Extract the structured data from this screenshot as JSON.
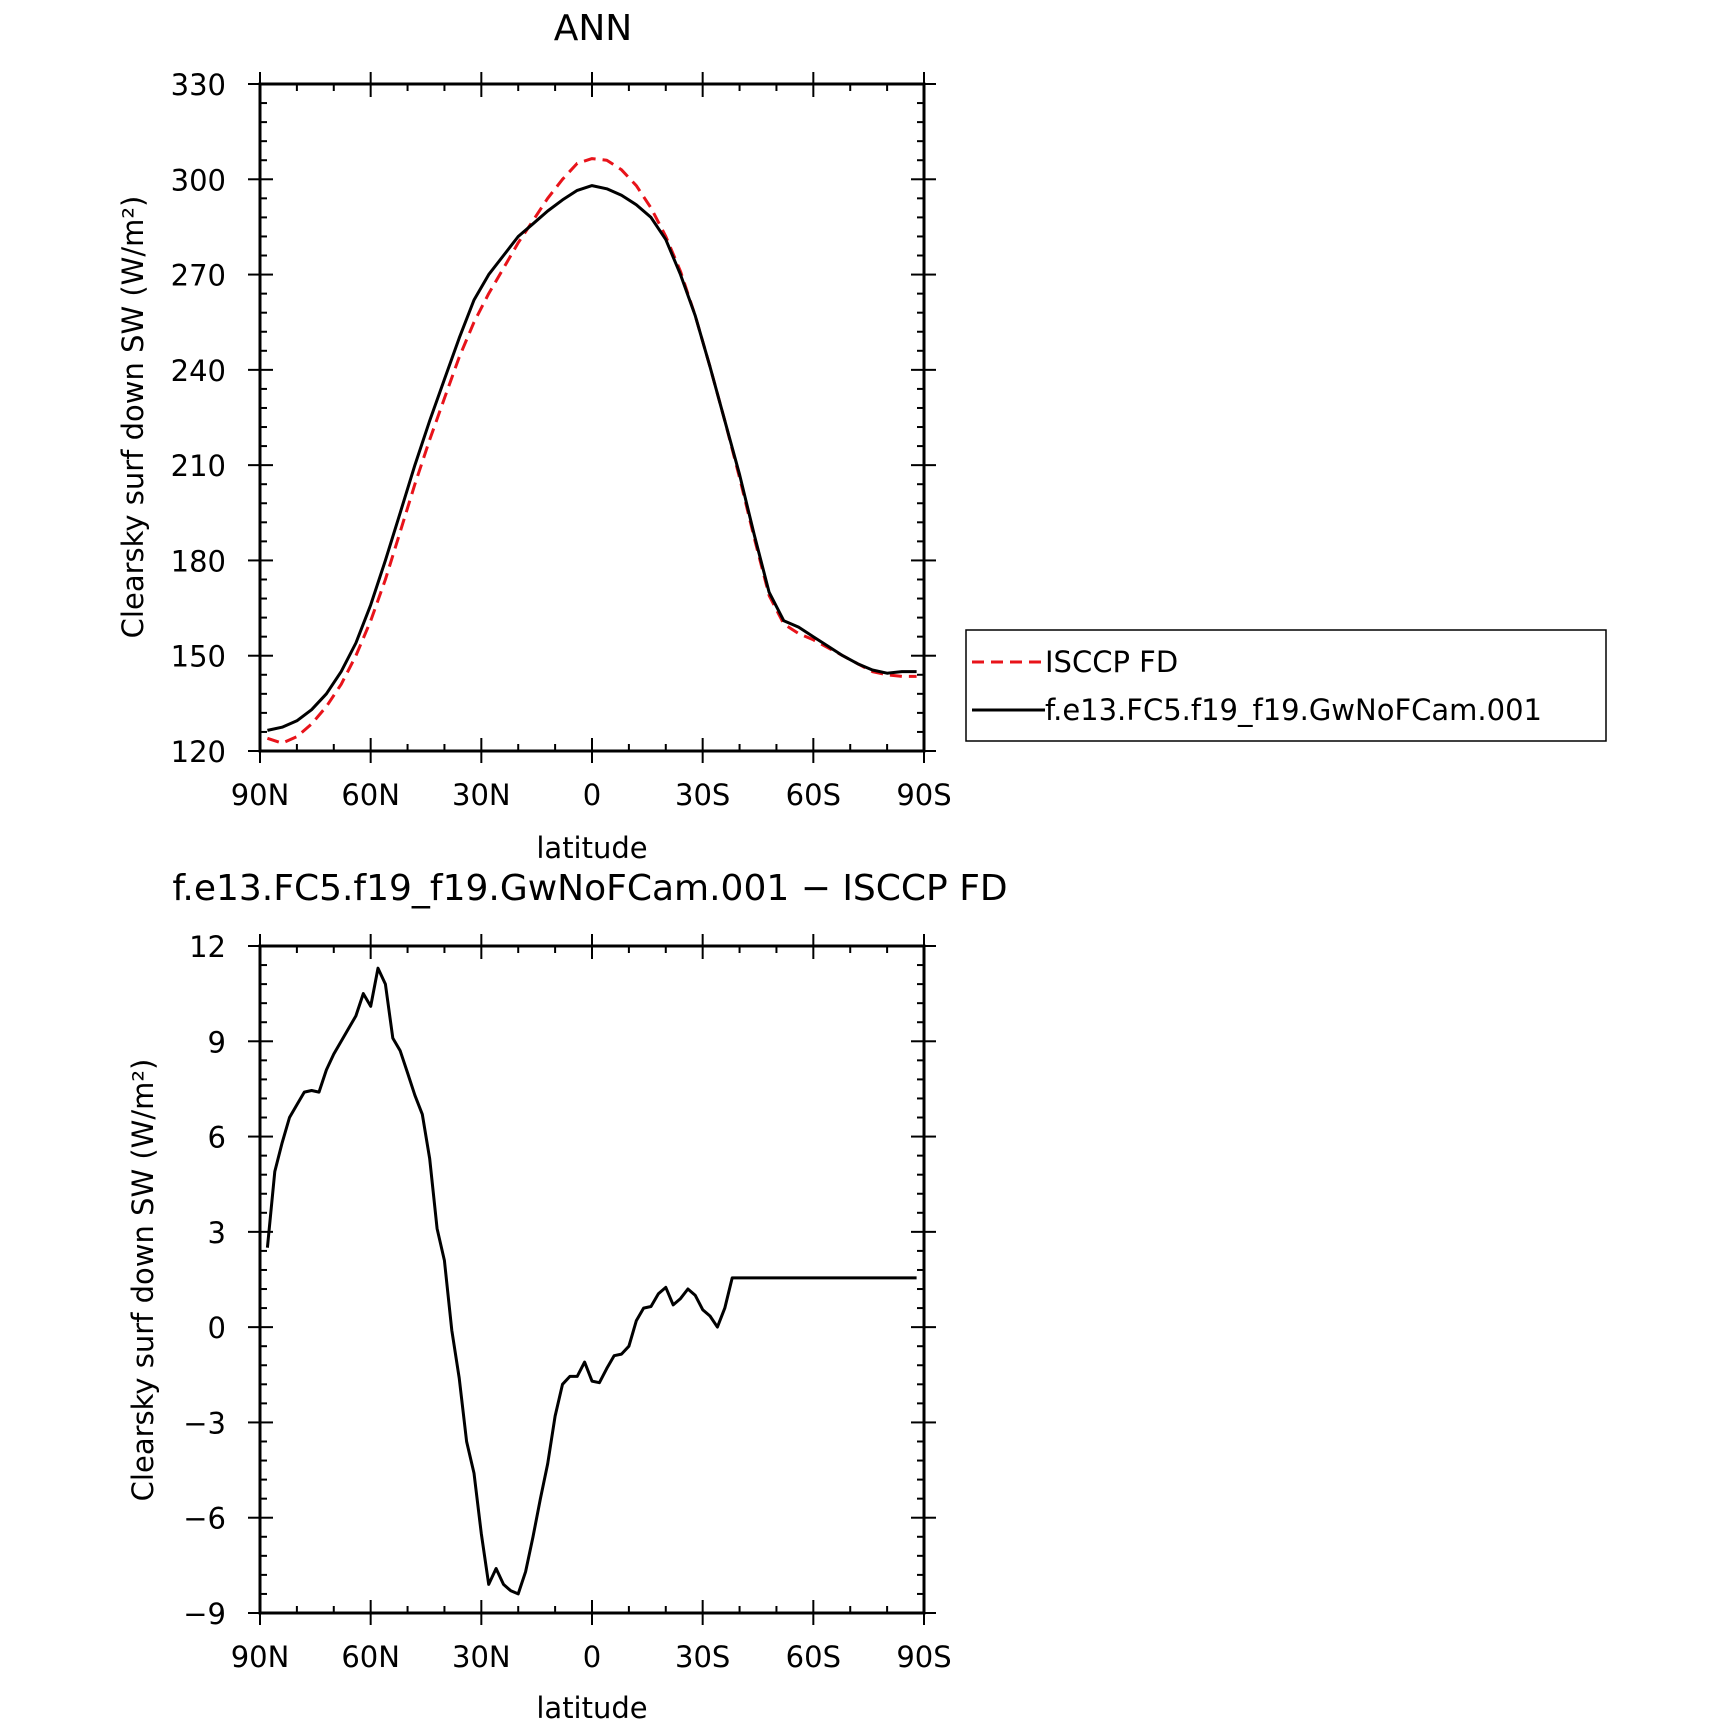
{
  "chart_data": [
    {
      "type": "line",
      "title": "ANN",
      "xlabel": "latitude",
      "ylabel": "Clearsky surf down SW (W/m²)",
      "ylim": [
        120,
        330
      ],
      "xlim": [
        90,
        -90
      ],
      "x_ticks": [
        90,
        60,
        30,
        0,
        -30,
        -60,
        -90
      ],
      "x_tick_labels": [
        "90N",
        "60N",
        "30N",
        "0",
        "30S",
        "60S",
        "90S"
      ],
      "y_ticks": [
        120,
        150,
        180,
        210,
        240,
        270,
        300,
        330
      ],
      "y_tick_labels": [
        "120",
        "150",
        "180",
        "210",
        "240",
        "270",
        "300",
        "330"
      ],
      "legend_position": "right",
      "series": [
        {
          "name": "ISCCP FD",
          "color": "#e8131a",
          "dash": "dashed",
          "x": [
            88,
            84,
            80,
            76,
            72,
            68,
            64,
            60,
            56,
            52,
            48,
            44,
            40,
            36,
            32,
            28,
            24,
            20,
            16,
            12,
            8,
            4,
            0,
            -4,
            -8,
            -12,
            -16,
            -20,
            -24,
            -28,
            -32,
            -36,
            -40,
            -44,
            -48,
            -52,
            -56,
            -60,
            -64,
            -68,
            -72,
            -76,
            -80,
            -84,
            -88
          ],
          "y": [
            124,
            122.5,
            124.5,
            128.5,
            134,
            141,
            150,
            161,
            174,
            189,
            204,
            218,
            231,
            244,
            255,
            264,
            272,
            280,
            287,
            294,
            300,
            305,
            306.5,
            306,
            303,
            298,
            291,
            282,
            271,
            257,
            241,
            224,
            206,
            187,
            169,
            160,
            157,
            155,
            152.5,
            150,
            147.5,
            145,
            144,
            143.5,
            143.5
          ]
        },
        {
          "name": "f.e13.FC5.f19_f19.GwNoFCam.001",
          "color": "#000000",
          "dash": "solid",
          "x": [
            88,
            84,
            80,
            76,
            72,
            68,
            64,
            60,
            56,
            52,
            48,
            44,
            40,
            36,
            32,
            28,
            24,
            20,
            16,
            12,
            8,
            4,
            0,
            -4,
            -8,
            -12,
            -16,
            -20,
            -24,
            -28,
            -32,
            -36,
            -40,
            -44,
            -48,
            -52,
            -56,
            -60,
            -64,
            -68,
            -72,
            -76,
            -80,
            -84,
            -88
          ],
          "y": [
            126.5,
            127.5,
            129.5,
            133,
            138,
            145,
            154,
            166,
            180,
            195,
            210,
            224,
            237,
            250,
            262,
            270,
            276,
            282,
            286,
            290,
            293.5,
            296.5,
            298,
            297,
            295,
            292,
            288,
            281,
            270,
            257,
            241,
            224,
            207,
            188,
            170,
            161,
            159,
            156,
            153,
            150,
            147.5,
            145.5,
            144.5,
            145,
            145
          ]
        }
      ]
    },
    {
      "type": "line",
      "title": "f.e13.FC5.f19_f19.GwNoFCam.001 − ISCCP FD",
      "xlabel": "latitude",
      "ylabel": "Clearsky surf down SW (W/m²)",
      "ylim": [
        -9,
        12
      ],
      "xlim": [
        90,
        -90
      ],
      "x_ticks": [
        90,
        60,
        30,
        0,
        -30,
        -60,
        -90
      ],
      "x_tick_labels": [
        "90N",
        "60N",
        "30N",
        "0",
        "30S",
        "60S",
        "90S"
      ],
      "y_ticks": [
        -9,
        -6,
        -3,
        0,
        3,
        6,
        9,
        12
      ],
      "y_tick_labels": [
        "−9",
        "−6",
        "−3",
        "0",
        "3",
        "6",
        "9",
        "12"
      ],
      "series": [
        {
          "color": "#000000",
          "dash": "solid",
          "x": [
            88,
            86,
            84,
            82,
            80,
            78,
            76,
            74,
            72,
            70,
            68,
            66,
            64,
            62,
            60,
            58,
            56,
            54,
            52,
            50,
            48,
            46,
            44,
            42,
            40,
            38,
            36,
            34,
            32,
            30,
            28,
            26,
            24,
            22,
            20,
            18,
            16,
            14,
            12,
            10,
            8,
            6,
            4,
            2,
            0,
            -2,
            -4,
            -6,
            -8,
            -10,
            -12,
            -14,
            -16,
            -18,
            -20,
            -22,
            -24,
            -26,
            -28,
            -30,
            -32,
            -34,
            -36,
            -38,
            -40,
            -42,
            -44,
            -46,
            -48,
            -50,
            -52,
            -54,
            -56,
            -58,
            -60,
            -62,
            -64,
            -66,
            -68,
            -70,
            -72,
            -74,
            -76,
            -78,
            -80,
            -82,
            -84,
            -86,
            -88
          ],
          "y": [
            2.5,
            4.9,
            5.8,
            6.6,
            7,
            7.4,
            7.45,
            7.4,
            8.1,
            8.6,
            9,
            9.4,
            9.8,
            10.5,
            10.1,
            11.3,
            10.8,
            9.1,
            8.7,
            8,
            7.3,
            6.7,
            5.3,
            3.1,
            2.1,
            -0.1,
            -1.6,
            -3.6,
            -4.6,
            -6.5,
            -8.1,
            -7.6,
            -8.1,
            -8.3,
            -8.4,
            -7.7,
            -6.6,
            -5.4,
            -4.3,
            -2.8,
            -1.8,
            -1.55,
            -1.55,
            -1.1,
            -1.7,
            -1.75,
            -1.3,
            -0.9,
            -0.85,
            -0.6,
            0.2,
            0.6,
            0.65,
            1.05,
            1.25,
            0.7,
            0.9,
            1.2,
            1.0,
            0.55,
            0.35,
            0.0,
            0.6,
            1.55,
            1.55,
            1.55,
            1.55,
            1.55,
            1.55,
            1.55,
            1.55,
            1.55,
            1.55,
            1.55,
            1.55,
            1.55,
            1.55,
            1.55,
            1.55,
            1.55,
            1.55,
            1.55,
            1.55,
            1.55,
            1.55,
            1.55,
            1.55,
            1.55,
            1.55
          ]
        }
      ]
    }
  ]
}
